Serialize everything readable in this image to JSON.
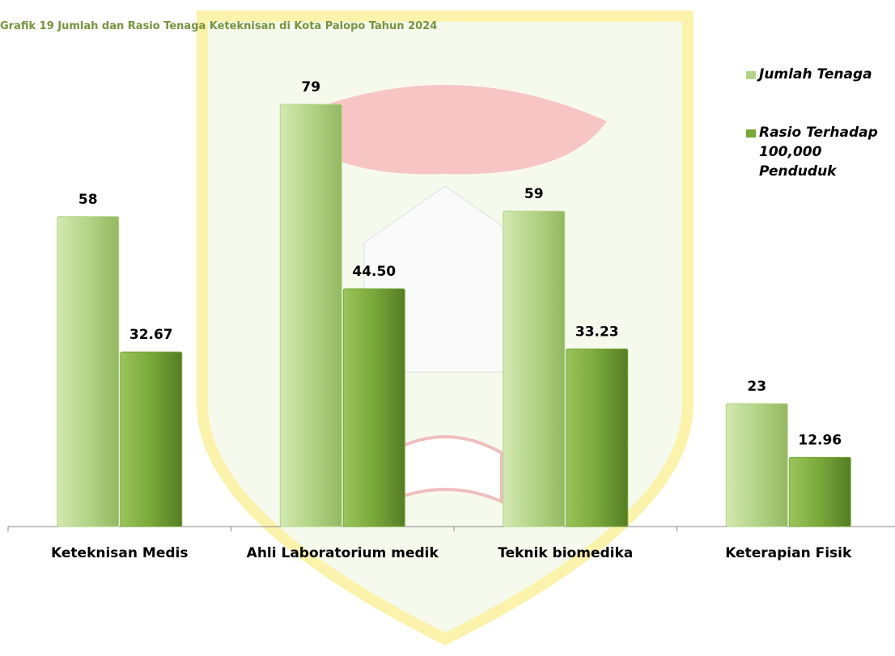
{
  "chart_data": {
    "type": "bar",
    "title": "Grafik 19 Jumlah dan Rasio Tenaga Keteknisan di Kota Palopo Tahun 2024",
    "categories": [
      "Keteknisan Medis",
      "Ahli Laboratorium medik",
      "Teknik biomedika",
      "Keterapian Fisik"
    ],
    "series": [
      {
        "name": "Jumlah Tenaga",
        "color": "#b3d486",
        "values": [
          58,
          79,
          59,
          23
        ]
      },
      {
        "name": "Rasio Terhadap 100,000 Penduduk",
        "color": "#78a83a",
        "values": [
          32.67,
          44.5,
          33.23,
          12.96
        ],
        "value_labels": [
          "32.67",
          "44.50",
          "33.23",
          "12.96"
        ]
      }
    ],
    "legend": "top-right"
  }
}
